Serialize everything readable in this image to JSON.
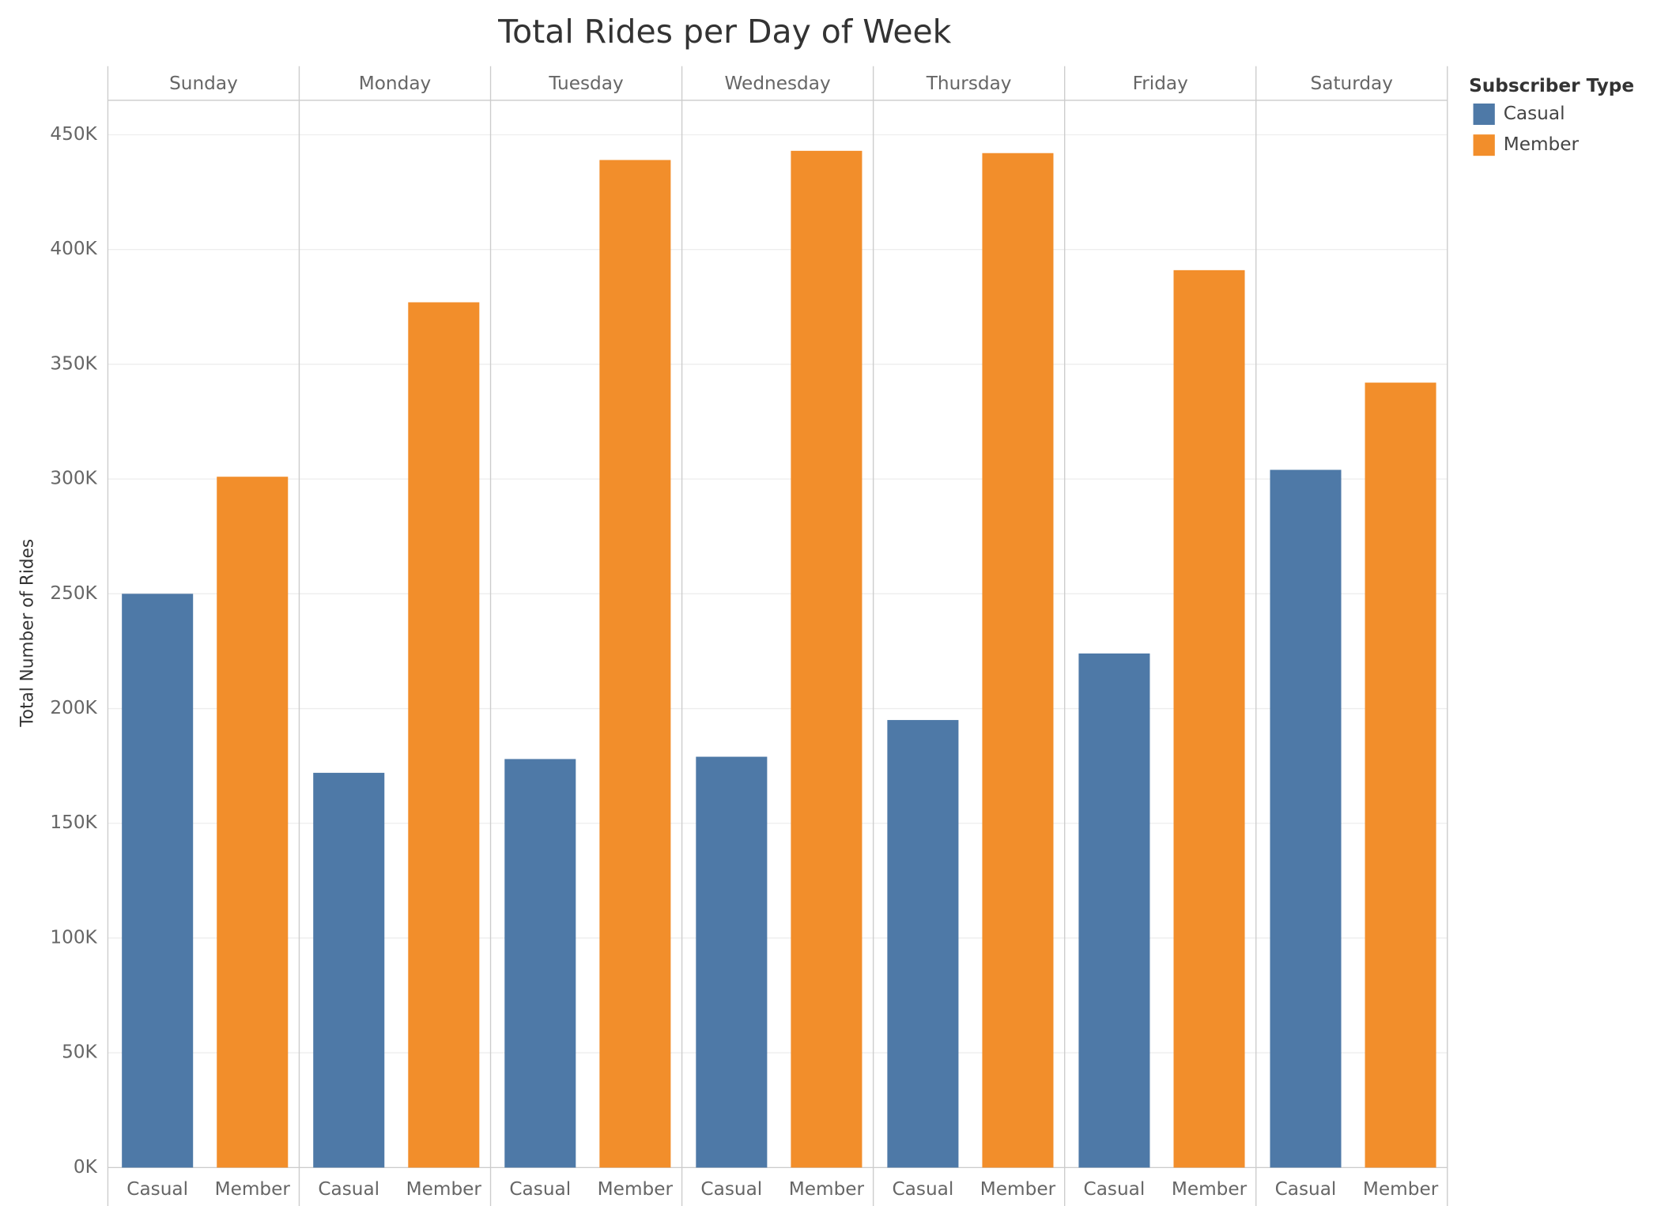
{
  "chart_data": {
    "type": "bar",
    "title": "Total Rides per Day of Week",
    "y_label": "Total Number of Rides",
    "legend_title": "Subscriber Type",
    "categories": [
      "Sunday",
      "Monday",
      "Tuesday",
      "Wednesday",
      "Thursday",
      "Friday",
      "Saturday"
    ],
    "series": [
      {
        "name": "Casual",
        "color": "#4e79a7",
        "values": [
          250000,
          172000,
          178000,
          179000,
          195000,
          224000,
          304000
        ]
      },
      {
        "name": "Member",
        "color": "#f28e2b",
        "values": [
          301000,
          377000,
          439000,
          443000,
          442000,
          391000,
          342000
        ]
      }
    ],
    "ylim": [
      0,
      465000
    ],
    "yticks": [
      {
        "value": 0,
        "label": "0K"
      },
      {
        "value": 50000,
        "label": "50K"
      },
      {
        "value": 100000,
        "label": "100K"
      },
      {
        "value": 150000,
        "label": "150K"
      },
      {
        "value": 200000,
        "label": "200K"
      },
      {
        "value": 250000,
        "label": "250K"
      },
      {
        "value": 300000,
        "label": "300K"
      },
      {
        "value": 350000,
        "label": "350K"
      },
      {
        "value": 400000,
        "label": "400K"
      },
      {
        "value": 450000,
        "label": "450K"
      }
    ],
    "grid": true,
    "legend": "right"
  }
}
